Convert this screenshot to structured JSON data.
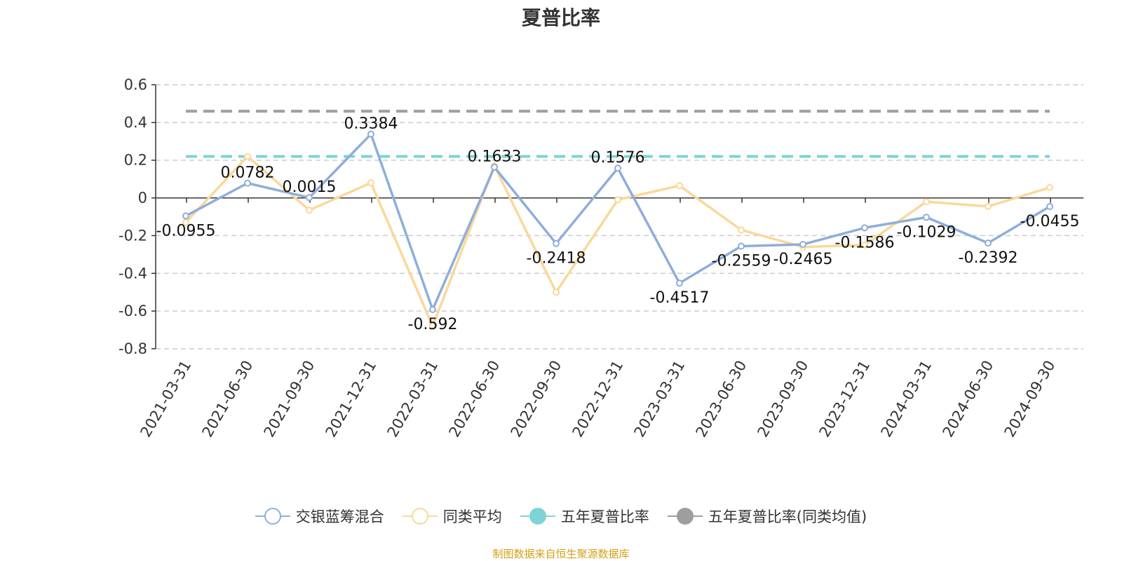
{
  "title": "夏普比率",
  "source_note": "制图数据来自恒生聚源数据库",
  "legend": [
    {
      "name": "交银蓝筹混合",
      "color": "#8eaedb",
      "marker": "hollow-circle"
    },
    {
      "name": "同类平均",
      "color": "#fad89a",
      "marker": "hollow-circle"
    },
    {
      "name": "五年夏普比率",
      "color": "#7fd3d6",
      "marker": "filled-circle"
    },
    {
      "name": "五年夏普比率(同类均值)",
      "color": "#9e9e9e",
      "marker": "filled-circle"
    }
  ],
  "chart_data": {
    "type": "line",
    "title": "夏普比率",
    "categories": [
      "2021-03-31",
      "2021-06-30",
      "2021-09-30",
      "2021-12-31",
      "2022-03-31",
      "2022-06-30",
      "2022-09-30",
      "2022-12-31",
      "2023-03-31",
      "2023-06-30",
      "2023-09-30",
      "2023-12-31",
      "2024-03-31",
      "2024-06-30",
      "2024-09-30"
    ],
    "y_ticks": [
      "0.6",
      "0.4",
      "0.2",
      "0",
      "-0.2",
      "-0.4",
      "-0.6",
      "-0.8"
    ],
    "ylim": [
      -0.8,
      0.6
    ],
    "grid": "horizontal dashed",
    "legend_position": "bottom",
    "series": [
      {
        "name": "交银蓝筹混合",
        "color": "#8eaedb",
        "values": [
          -0.0955,
          0.0782,
          0.0015,
          0.3384,
          -0.592,
          0.1633,
          -0.2418,
          0.1576,
          -0.4517,
          -0.2559,
          -0.2465,
          -0.1586,
          -0.1029,
          -0.2392,
          -0.0455
        ],
        "labels": [
          "-0.0955",
          "0.0782",
          "0.0015",
          "0.3384",
          "-0.592",
          "0.1633",
          "-0.2418",
          "0.1576",
          "-0.4517",
          "-0.2559",
          "-0.2465",
          "-0.1586",
          "-0.1029",
          "-0.2392",
          "-0.0455"
        ]
      },
      {
        "name": "同类平均",
        "color": "#fad89a",
        "values": [
          -0.13,
          0.22,
          -0.065,
          0.08,
          -0.68,
          0.17,
          -0.5,
          -0.01,
          0.065,
          -0.17,
          -0.26,
          -0.25,
          -0.02,
          -0.045,
          0.055
        ]
      }
    ],
    "reference_lines": [
      {
        "name": "五年夏普比率",
        "color": "#7fd3d6",
        "value": 0.22
      },
      {
        "name": "五年夏普比率(同类均值)",
        "color": "#9e9e9e",
        "value": 0.46
      }
    ]
  }
}
